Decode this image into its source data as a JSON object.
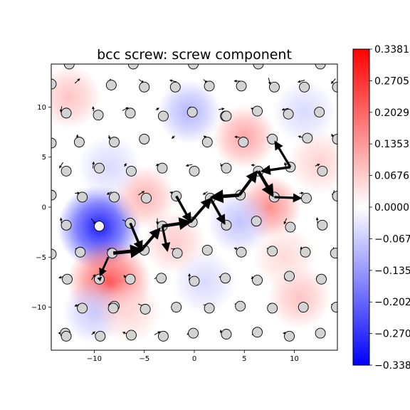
{
  "chart_data": {
    "type": "scatter",
    "title": "bcc screw: screw component",
    "xlabel": "",
    "ylabel": "",
    "xlim": [
      -14.3,
      14.3
    ],
    "ylim": [
      -14.3,
      14.3
    ],
    "xticks": [
      -10,
      -5,
      0,
      5,
      10
    ],
    "yticks": [
      -10,
      -5,
      0,
      5,
      10
    ],
    "tick_labels_x": [
      "−10",
      "−5",
      "0",
      "5",
      "10"
    ],
    "tick_labels_y": [
      "−10",
      "−5",
      "0",
      "5",
      "10"
    ],
    "colorbar": {
      "cmap": "bwr",
      "vmin": -0.3381,
      "vmax": 0.3381,
      "ticks": [
        0.3381,
        0.2705,
        0.2029,
        0.1353,
        0.0676,
        0.0,
        -0.0676,
        -0.1353,
        -0.2029,
        -0.2705,
        -0.3381
      ],
      "tick_labels": [
        "0.3381",
        "0.2705",
        "0.2029",
        "0.1353",
        "0.0676",
        "0.0000",
        "−0.0676",
        "−0.1353",
        "−0.2029",
        "−0.2705",
        "−0.3381"
      ]
    },
    "field_blobs": [
      {
        "x": -9.5,
        "y": -2.0,
        "value": -0.3
      },
      {
        "x": -8.5,
        "y": -7.5,
        "value": 0.22
      },
      {
        "x": 7.5,
        "y": 0.0,
        "value": 0.15
      },
      {
        "x": 5.0,
        "y": 7.0,
        "value": 0.12
      },
      {
        "x": -5.0,
        "y": 1.0,
        "value": 0.1
      },
      {
        "x": -0.5,
        "y": 9.5,
        "value": -0.1
      },
      {
        "x": 4.5,
        "y": -1.5,
        "value": -0.08
      },
      {
        "x": -12.5,
        "y": 11.0,
        "value": 0.08
      },
      {
        "x": 10.5,
        "y": -9.0,
        "value": 0.08
      },
      {
        "x": -10.0,
        "y": -10.5,
        "value": -0.07
      },
      {
        "x": -2.0,
        "y": -3.5,
        "value": 0.07
      },
      {
        "x": -8.5,
        "y": 4.0,
        "value": -0.05
      },
      {
        "x": 9.0,
        "y": -5.0,
        "value": 0.05
      },
      {
        "x": 1.0,
        "y": -7.5,
        "value": -0.05
      },
      {
        "x": -6.5,
        "y": -10.5,
        "value": 0.05
      },
      {
        "x": 11.0,
        "y": 9.5,
        "value": -0.05
      },
      {
        "x": 12.5,
        "y": 4.5,
        "value": 0.06
      }
    ],
    "atoms": [
      [
        -12.5,
        14.3
      ],
      [
        -6.1,
        14.3
      ],
      [
        -0.1,
        14.3
      ],
      [
        6.4,
        14.3
      ],
      [
        12.6,
        14.3
      ],
      [
        -14.3,
        12.3
      ],
      [
        -8.3,
        12.2
      ],
      [
        -5.0,
        12.0
      ],
      [
        -1.9,
        12.0
      ],
      [
        1.5,
        12.1
      ],
      [
        4.7,
        12.1
      ],
      [
        8.0,
        12.0
      ],
      [
        11.0,
        12.0
      ],
      [
        14.3,
        12.0
      ],
      [
        -12.8,
        9.4
      ],
      [
        -9.6,
        9.2
      ],
      [
        -6.4,
        9.4
      ],
      [
        -3.1,
        9.1
      ],
      [
        -0.2,
        9.5
      ],
      [
        3.1,
        9.1
      ],
      [
        3.2,
        9.1
      ],
      [
        6.3,
        9.6
      ],
      [
        9.4,
        9.3
      ],
      [
        12.5,
        9.5
      ],
      [
        -14.3,
        6.4
      ],
      [
        -11.5,
        6.5
      ],
      [
        -8.0,
        6.5
      ],
      [
        -5.0,
        6.8
      ],
      [
        1.3,
        6.5
      ],
      [
        4.9,
        6.5
      ],
      [
        7.8,
        6.8
      ],
      [
        11.3,
        6.9
      ],
      [
        14.3,
        6.8
      ],
      [
        -12.8,
        3.6
      ],
      [
        -9.5,
        3.9
      ],
      [
        -6.3,
        3.6
      ],
      [
        -3.2,
        3.9
      ],
      [
        0.0,
        3.6
      ],
      [
        3.2,
        3.9
      ],
      [
        6.4,
        3.6
      ],
      [
        9.6,
        4.0
      ],
      [
        12.8,
        3.6
      ],
      [
        -14.3,
        1.2
      ],
      [
        -11.2,
        1.0
      ],
      [
        -8.0,
        1.0
      ],
      [
        -4.8,
        0.9
      ],
      [
        -1.8,
        1.1
      ],
      [
        1.6,
        0.9
      ],
      [
        4.6,
        1.2
      ],
      [
        8.0,
        1.0
      ],
      [
        11.2,
        0.9
      ],
      [
        14.3,
        1.1
      ],
      [
        -12.8,
        -1.8
      ],
      [
        -9.5,
        -1.9
      ],
      [
        -6.4,
        -1.6
      ],
      [
        -3.2,
        -1.9
      ],
      [
        -0.2,
        -1.5
      ],
      [
        3.2,
        -1.8
      ],
      [
        6.2,
        -1.4
      ],
      [
        9.6,
        -2.0
      ],
      [
        12.8,
        -1.8
      ],
      [
        -14.3,
        -4.7
      ],
      [
        -11.4,
        -4.5
      ],
      [
        -8.2,
        -4.6
      ],
      [
        -5.0,
        -4.3
      ],
      [
        -1.7,
        -4.6
      ],
      [
        1.3,
        -4.3
      ],
      [
        4.7,
        -4.5
      ],
      [
        7.8,
        -4.4
      ],
      [
        11.1,
        -4.5
      ],
      [
        14.1,
        -4.6
      ],
      [
        -12.7,
        -7.2
      ],
      [
        -9.5,
        -7.2
      ],
      [
        -6.4,
        -7.2
      ],
      [
        -3.3,
        -7.1
      ],
      [
        0.0,
        -7.4
      ],
      [
        3.1,
        -7.1
      ],
      [
        6.3,
        -7.3
      ],
      [
        9.5,
        -6.9
      ],
      [
        12.7,
        -7.2
      ],
      [
        -11.2,
        -10.1
      ],
      [
        -8.0,
        -9.9
      ],
      [
        -8.1,
        -10.1
      ],
      [
        -4.9,
        -10.2
      ],
      [
        -1.8,
        -10.0
      ],
      [
        1.5,
        -10.1
      ],
      [
        4.6,
        -9.9
      ],
      [
        7.8,
        -10.1
      ],
      [
        10.9,
        -10.0
      ],
      [
        14.2,
        -10.0
      ],
      [
        -12.9,
        -12.6
      ],
      [
        -12.8,
        -12.9
      ],
      [
        -9.4,
        -12.9
      ],
      [
        -6.3,
        -12.8
      ],
      [
        -3.1,
        -12.9
      ],
      [
        -0.1,
        -12.6
      ],
      [
        3.2,
        -12.7
      ],
      [
        6.3,
        -12.5
      ],
      [
        9.5,
        -12.9
      ],
      [
        12.6,
        -12.6
      ]
    ],
    "highlight_atom": [
      -9.5,
      -1.9
    ],
    "arrows": [
      [
        -8.1,
        -4.6,
        -5.3,
        -4.3,
        3.0
      ],
      [
        -5.3,
        -4.3,
        -3.5,
        -2.2,
        2.5
      ],
      [
        -6.4,
        -1.6,
        -5.3,
        -4.2,
        2.2
      ],
      [
        -3.2,
        -1.9,
        -2.7,
        -4.3,
        2.0
      ],
      [
        -3.2,
        -1.9,
        -0.5,
        -1.5,
        2.8
      ],
      [
        -0.4,
        -1.5,
        1.6,
        0.8,
        2.4
      ],
      [
        -1.8,
        1.1,
        -0.4,
        -1.4,
        2.2
      ],
      [
        1.6,
        0.9,
        3.0,
        -1.6,
        2.2
      ],
      [
        4.5,
        1.2,
        1.8,
        1.0,
        3.0
      ],
      [
        4.5,
        1.2,
        6.2,
        3.5,
        2.6
      ],
      [
        6.4,
        3.6,
        7.8,
        1.2,
        2.8
      ],
      [
        8.0,
        1.0,
        10.6,
        0.9,
        2.0
      ],
      [
        9.6,
        4.0,
        6.8,
        3.6,
        2.2
      ],
      [
        9.6,
        4.0,
        8.1,
        6.5,
        2.0
      ],
      [
        -9.5,
        -7.2,
        -9.3,
        -7.0,
        1.0
      ],
      [
        -8.6,
        -5.0,
        -9.4,
        -6.8,
        1.8
      ],
      [
        -3.2,
        -1.9,
        -4.8,
        -4.2,
        0.0
      ]
    ],
    "small_arrows_count": 140
  }
}
